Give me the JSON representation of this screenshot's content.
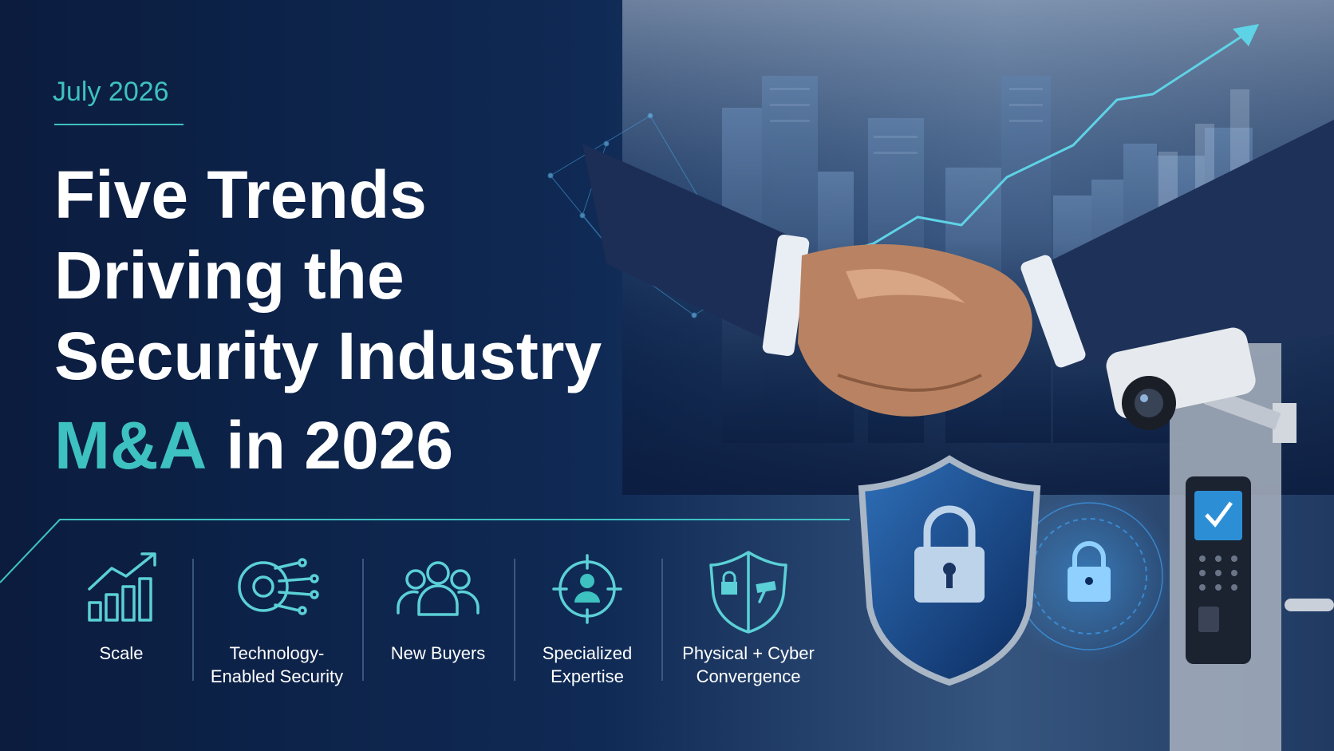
{
  "date": "July 2026",
  "title": {
    "lines": [
      "Five Trends",
      "Driving the",
      "Security Industry"
    ],
    "highlight": "M&A",
    "rest": "in 2026"
  },
  "trends": [
    {
      "label": [
        "Scale"
      ]
    },
    {
      "label": [
        "Technology-",
        "Enabled Security"
      ]
    },
    {
      "label": [
        "New Buyers"
      ]
    },
    {
      "label": [
        "Specialized",
        "Expertise"
      ]
    },
    {
      "label": [
        "Physical + Cyber",
        "Convergence"
      ]
    }
  ]
}
